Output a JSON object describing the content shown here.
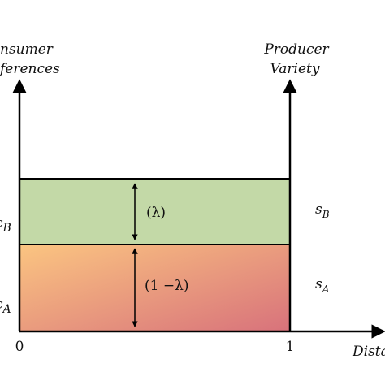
{
  "axes": {
    "left_title": [
      "nsumer",
      "ferences"
    ],
    "right_title": [
      "Producer",
      "Variety"
    ],
    "x_title": "Dista",
    "x_start": "0",
    "x_end": "1"
  },
  "bands": [
    {
      "share": "(λ)",
      "segment": "s",
      "segment_sub": "B",
      "left": "c",
      "left_sub": "B"
    },
    {
      "share": "(1 −λ)",
      "segment": "s",
      "segment_sub": "A",
      "left": "c",
      "left_sub": "A"
    }
  ]
}
